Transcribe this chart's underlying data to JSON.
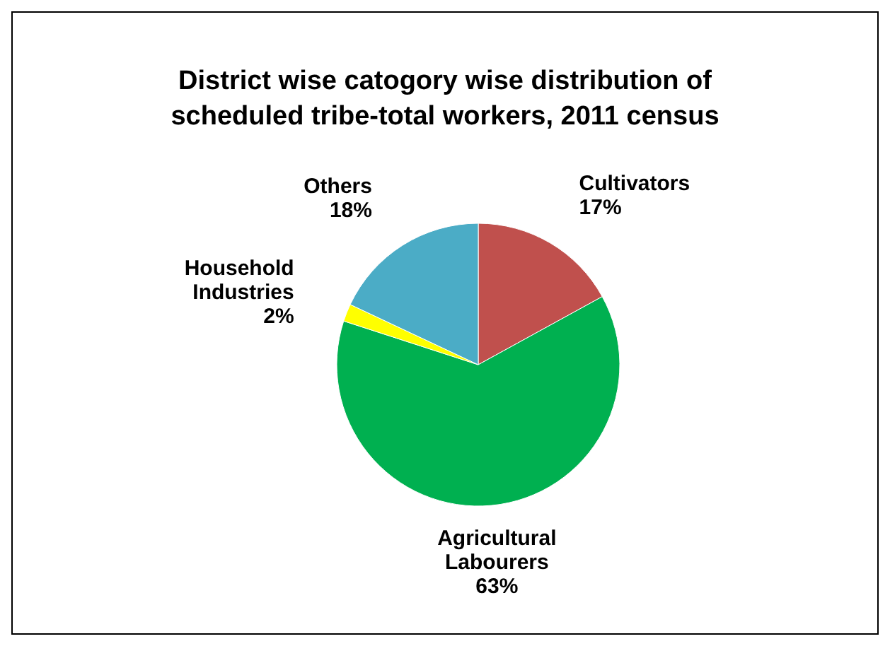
{
  "chart_data": {
    "type": "pie",
    "title": "District wise catogory wise distribution of scheduled tribe-total workers, 2011 census",
    "categories": [
      "Cultivators",
      "Agricultural Labourers",
      "Household Industries",
      "Others"
    ],
    "values": [
      17,
      63,
      2,
      18
    ],
    "colors": [
      "#c0504d",
      "#00b050",
      "#ffff00",
      "#4bacc6"
    ],
    "value_labels": [
      "17%",
      "63%",
      "2%",
      "18%"
    ]
  }
}
